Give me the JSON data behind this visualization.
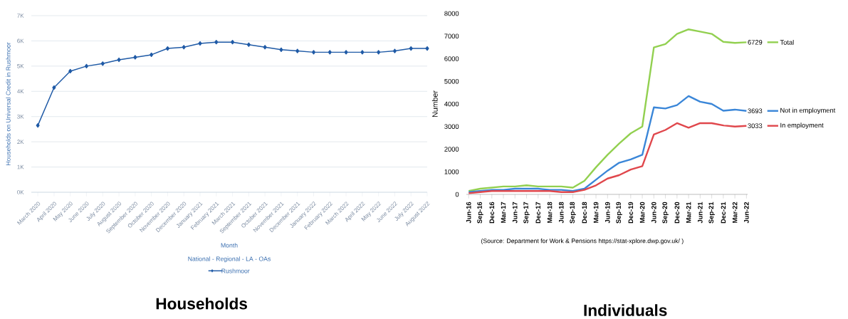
{
  "chart_data": [
    {
      "type": "line",
      "title": "Households",
      "xlabel": "Month",
      "ylabel": "Households on Universal Credit in Rushmoor",
      "legend_title": "National - Regional - LA - OAs",
      "categories": [
        "March 2020",
        "April 2020",
        "May 2020",
        "June 2020",
        "July 2020",
        "August 2020",
        "September 2020",
        "October 2020",
        "November 2020",
        "December 2020",
        "January 2021",
        "February 2021",
        "March 2021",
        "September 2021",
        "October 2021",
        "November 2021",
        "December 2021",
        "January 2022",
        "February 2022",
        "March 2022",
        "April 2022",
        "May 2022",
        "June 2022",
        "July 2022",
        "August 2022"
      ],
      "series": [
        {
          "name": "Rushmoor",
          "color": "#1f5aa6",
          "values": [
            2650,
            4150,
            4800,
            5000,
            5100,
            5250,
            5350,
            5450,
            5700,
            5750,
            5900,
            5950,
            5950,
            5850,
            5750,
            5650,
            5600,
            5550,
            5550,
            5550,
            5550,
            5550,
            5600,
            5700,
            5700
          ]
        }
      ],
      "ylim": [
        0,
        7000
      ],
      "yticks": [
        {
          "value": 0,
          "label": "0K"
        },
        {
          "value": 1000,
          "label": "1K"
        },
        {
          "value": 2000,
          "label": "2K"
        },
        {
          "value": 3000,
          "label": "3K"
        },
        {
          "value": 4000,
          "label": "4K"
        },
        {
          "value": 5000,
          "label": "5K"
        },
        {
          "value": 6000,
          "label": "6K"
        },
        {
          "value": 7000,
          "label": "7K"
        }
      ],
      "grid": "y",
      "legend": "bottom",
      "marker": "diamond"
    },
    {
      "type": "line",
      "title": "Individuals",
      "ylabel": "Number",
      "annotations": [
        "(Source: Department for Work & Pensions https://stat-xplore.dwp.gov.uk/ )"
      ],
      "categories": [
        "Jun-16",
        "Sep-16",
        "Dec-16",
        "Mar-17",
        "Jun-17",
        "Sep-17",
        "Dec-17",
        "Mar-18",
        "Jun-18",
        "Sep-18",
        "Dec-18",
        "Mar-19",
        "Jun-19",
        "Sep-19",
        "Dec-19",
        "Mar-20",
        "Jun-20",
        "Sep-20",
        "Dec-20",
        "Mar-21",
        "Jun-21",
        "Sep-21",
        "Dec-21",
        "Mar-22",
        "Jun-22"
      ],
      "series": [
        {
          "name": "Total",
          "color": "#92d050",
          "values": [
            150,
            250,
            300,
            350,
            350,
            400,
            350,
            350,
            350,
            300,
            600,
            1200,
            1750,
            2250,
            2700,
            3000,
            6500,
            6650,
            7100,
            7300,
            7200,
            7100,
            6750,
            6700,
            6729
          ],
          "value_labels": [
            null,
            null,
            null,
            null,
            null,
            null,
            null,
            null,
            null,
            null,
            null,
            null,
            null,
            null,
            null,
            null,
            null,
            null,
            null,
            null,
            null,
            null,
            null,
            null,
            "6729"
          ]
        },
        {
          "name": "Not in employment",
          "color": "#3a86d8",
          "values": [
            100,
            150,
            200,
            200,
            250,
            250,
            250,
            200,
            200,
            150,
            250,
            650,
            1050,
            1400,
            1550,
            1750,
            3850,
            3800,
            3950,
            4350,
            4100,
            4000,
            3700,
            3750,
            3693
          ],
          "value_labels": [
            null,
            null,
            null,
            null,
            null,
            null,
            null,
            null,
            null,
            null,
            null,
            null,
            null,
            null,
            null,
            null,
            null,
            null,
            null,
            null,
            null,
            null,
            null,
            null,
            "3693"
          ]
        },
        {
          "name": "In employment",
          "color": "#e0474c",
          "values": [
            50,
            100,
            150,
            150,
            150,
            150,
            150,
            150,
            100,
            100,
            200,
            400,
            700,
            850,
            1100,
            1250,
            2650,
            2850,
            3150,
            2950,
            3150,
            3150,
            3050,
            3000,
            3033
          ],
          "value_labels": [
            null,
            null,
            null,
            null,
            null,
            null,
            null,
            null,
            null,
            null,
            null,
            null,
            null,
            null,
            null,
            null,
            null,
            null,
            null,
            null,
            null,
            null,
            null,
            null,
            "3033"
          ]
        }
      ],
      "ylim": [
        0,
        8000
      ],
      "yticks": [
        0,
        1000,
        2000,
        3000,
        4000,
        5000,
        6000,
        7000,
        8000
      ],
      "legend": "right",
      "marker": "none"
    }
  ]
}
